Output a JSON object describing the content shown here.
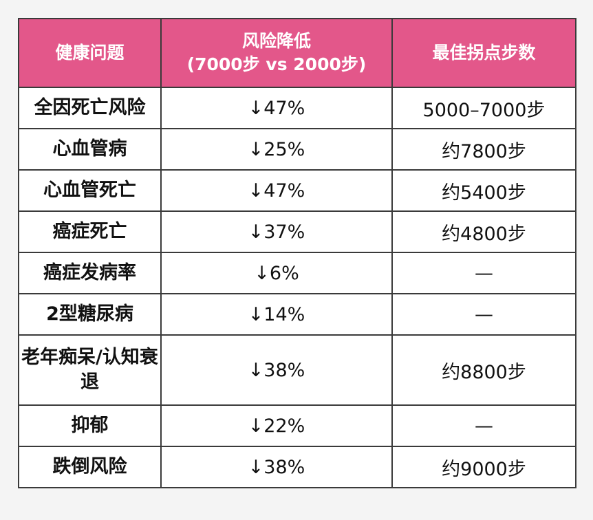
{
  "headers": {
    "issue": "健康问题",
    "risk_line1": "风险降低",
    "risk_line2": "(7000步 vs 2000步)",
    "steps": "最佳拐点步数"
  },
  "rows": [
    {
      "issue": "全因死亡风险",
      "risk": "↓47%",
      "steps": "5000–7000步"
    },
    {
      "issue": "心血管病",
      "risk": "↓25%",
      "steps": "约7800步"
    },
    {
      "issue": "心血管死亡",
      "risk": "↓47%",
      "steps": "约5400步"
    },
    {
      "issue": "癌症死亡",
      "risk": "↓37%",
      "steps": "约4800步"
    },
    {
      "issue": "癌症发病率",
      "risk": "↓6%",
      "steps": "—"
    },
    {
      "issue": "2型糖尿病",
      "risk": "↓14%",
      "steps": "—"
    },
    {
      "issue": "老年痴呆/认知衰退",
      "risk": "↓38%",
      "steps": "约8800步"
    },
    {
      "issue": "抑郁",
      "risk": "↓22%",
      "steps": "—"
    },
    {
      "issue": "跌倒风险",
      "risk": "↓38%",
      "steps": "约9000步"
    }
  ],
  "colors": {
    "header_bg": "#e3578a",
    "header_text": "#ffffff",
    "border": "#3a3a3a"
  }
}
